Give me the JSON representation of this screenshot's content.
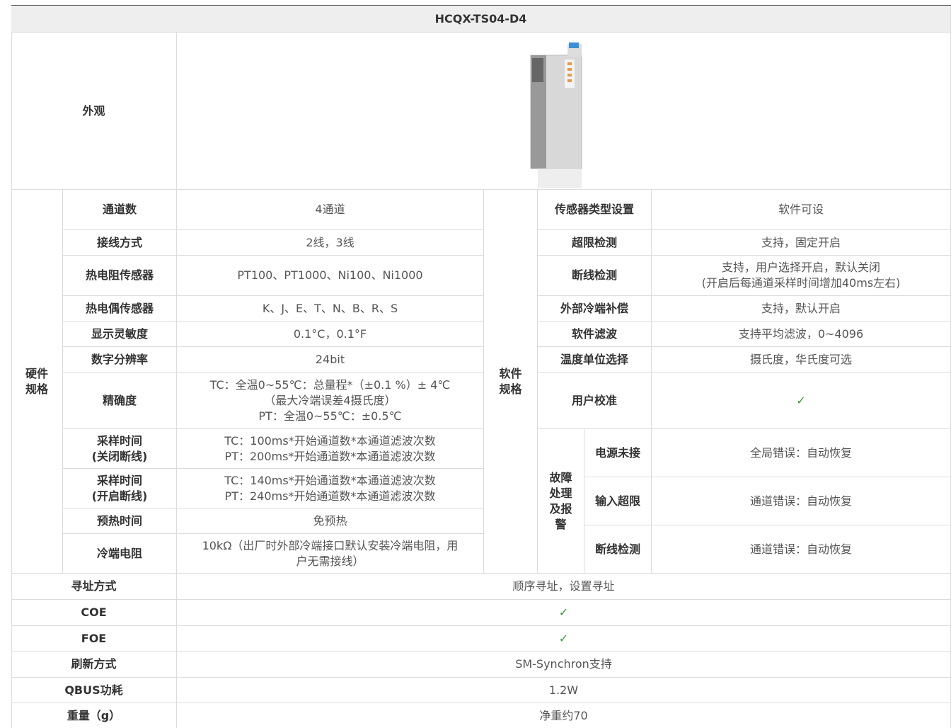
{
  "header": {
    "model": "HCQX-TS04-D4"
  },
  "appearance": {
    "label": "外观"
  },
  "hardware": {
    "label": "硬件规格",
    "rows": [
      {
        "label": [
          "通道数"
        ],
        "value": [
          "4通道"
        ]
      },
      {
        "label": [
          "接线方式"
        ],
        "value": [
          "2线，3线"
        ]
      },
      {
        "label": [
          "热电阻传感器"
        ],
        "value": [
          "PT100、PT1000、Ni100、Ni1000"
        ]
      },
      {
        "label": [
          "热电偶传感器"
        ],
        "value": [
          "K、J、E、T、N、B、R、S"
        ]
      },
      {
        "label": [
          "显示灵敏度"
        ],
        "value": [
          "0.1°C，0.1°F"
        ]
      },
      {
        "label": [
          "数字分辨率"
        ],
        "value": [
          "24bit"
        ]
      },
      {
        "label": [
          "精确度"
        ],
        "value": [
          "TC：全温0~55℃：总量程*（±0.1 %）± 4℃",
          "（最大冷端误差4摄氏度）",
          "PT：全温0~55℃：±0.5℃"
        ]
      },
      {
        "label": [
          "采样时间",
          "(关闭断线)"
        ],
        "value": [
          "TC：100ms*开始通道数*本通道滤波次数",
          "PT：200ms*开始通道数*本通道滤波次数"
        ]
      },
      {
        "label": [
          "采样时间",
          "(开启断线)"
        ],
        "value": [
          "TC：140ms*开始通道数*本通道滤波次数",
          "PT：240ms*开始通道数*本通道滤波次数"
        ]
      },
      {
        "label": [
          "预热时间"
        ],
        "value": [
          "免预热"
        ]
      },
      {
        "label": [
          "冷端电阻"
        ],
        "value": [
          "10kΩ（出厂时外部冷端接口默认安装冷端电阻，用",
          "户无需接线）"
        ]
      }
    ]
  },
  "software": {
    "label": "软件规格",
    "rows": [
      {
        "label": [
          "传感器类型设置"
        ],
        "value": [
          "软件可设"
        ]
      },
      {
        "label": [
          "超限检测"
        ],
        "value": [
          "支持，固定开启"
        ]
      },
      {
        "label": [
          "断线检测"
        ],
        "value": [
          "支持，用户选择开启，默认关闭",
          "(开启后每通道采样时间增加40ms左右)"
        ]
      },
      {
        "label": [
          "外部冷端补偿"
        ],
        "value": [
          "支持，默认开启"
        ]
      },
      {
        "label": [
          "软件滤波"
        ],
        "value": [
          "支持平均滤波，0~4096"
        ]
      },
      {
        "label": [
          "温度单位选择"
        ],
        "value": [
          "摄氏度，华氏度可选"
        ]
      },
      {
        "label": [
          "用户校准"
        ],
        "value": [
          "✓"
        ]
      }
    ],
    "fault": {
      "label": "故障处理及报警",
      "rows": [
        {
          "label": [
            "电源未接"
          ],
          "value": [
            "全局错误：自动恢复"
          ]
        },
        {
          "label": [
            "输入超限"
          ],
          "value": [
            "通道错误：自动恢复"
          ]
        },
        {
          "label": [
            "断线检测"
          ],
          "value": [
            "通道错误：自动恢复"
          ]
        }
      ]
    }
  },
  "general": {
    "rows": [
      {
        "label": [
          "寻址方式"
        ],
        "value": [
          "顺序寻址，设置寻址"
        ]
      },
      {
        "label": [
          "COE"
        ],
        "value": [
          "✓"
        ]
      },
      {
        "label": [
          "FOE"
        ],
        "value": [
          "✓"
        ]
      },
      {
        "label": [
          "刷新方式"
        ],
        "value": [
          "SM-Synchron支持"
        ]
      },
      {
        "label": [
          "QBUS功耗"
        ],
        "value": [
          "1.2W"
        ]
      },
      {
        "label": [
          "重量（g）"
        ],
        "value": [
          "净重约70"
        ]
      }
    ]
  }
}
